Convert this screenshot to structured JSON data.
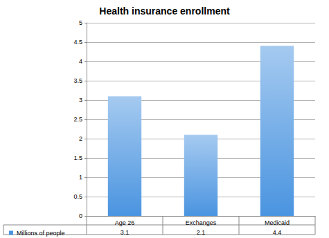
{
  "chart_data": {
    "type": "bar",
    "title": "Health insurance enrollment",
    "categories": [
      "Age 26",
      "Exchanges",
      "Medicaid"
    ],
    "series": [
      {
        "name": "Millions of people",
        "color": "#4a94e0",
        "values": [
          3.1,
          2.1,
          4.4
        ]
      }
    ],
    "ylim": [
      0,
      5
    ],
    "yticks": [
      0,
      0.5,
      1,
      1.5,
      2,
      2.5,
      3,
      3.5,
      4,
      4.5,
      5
    ],
    "grid": true,
    "legend": "bottom-left"
  }
}
